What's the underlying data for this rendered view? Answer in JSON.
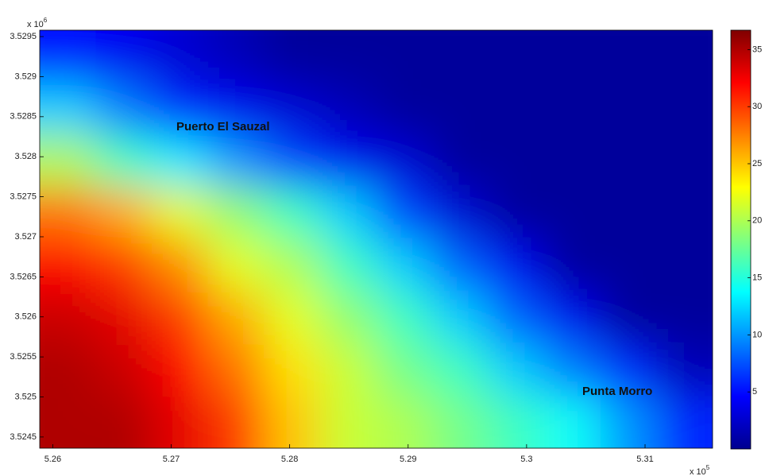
{
  "chart_data": {
    "type": "heatmap",
    "annotations": [
      "Puerto El Sauzal",
      "Punta Morro"
    ],
    "x_exponent_base": "x 10",
    "x_exponent": "5",
    "y_exponent_base": "x 10",
    "y_exponent": "6",
    "xlim": [
      5.2589,
      5.3157
    ],
    "xticks": [
      5.26,
      5.27,
      5.28,
      5.29,
      5.3,
      5.31
    ],
    "ylim": [
      3.52436,
      3.52958
    ],
    "yticks": [
      3.5245,
      3.525,
      3.5255,
      3.526,
      3.5265,
      3.527,
      3.5275,
      3.528,
      3.5285,
      3.529,
      3.5295
    ],
    "clim": [
      0,
      36.7
    ],
    "cticks": [
      5,
      10,
      15,
      20,
      25,
      30,
      35
    ],
    "colormap": "jet",
    "z": [
      [
        5,
        4,
        3,
        2,
        1,
        1,
        1,
        1,
        1,
        1,
        1,
        1
      ],
      [
        12,
        9,
        6,
        4,
        3,
        2,
        1,
        1,
        1,
        1,
        1,
        1
      ],
      [
        20,
        16,
        13,
        10,
        7,
        4,
        3,
        1,
        1,
        1,
        1,
        1
      ],
      [
        28,
        26,
        22,
        19,
        16,
        12,
        7,
        3,
        1,
        1,
        1,
        1
      ],
      [
        32,
        30,
        27,
        22,
        20,
        16,
        12,
        8,
        4,
        1,
        1,
        1
      ],
      [
        34,
        33,
        30,
        26,
        22,
        19,
        16,
        12,
        8,
        4,
        1,
        1
      ],
      [
        35,
        34,
        32,
        28,
        24,
        21,
        18,
        16,
        12,
        9,
        6,
        2
      ],
      [
        35,
        35,
        33,
        30,
        25,
        21,
        20,
        18,
        16,
        14,
        10,
        6
      ]
    ]
  }
}
